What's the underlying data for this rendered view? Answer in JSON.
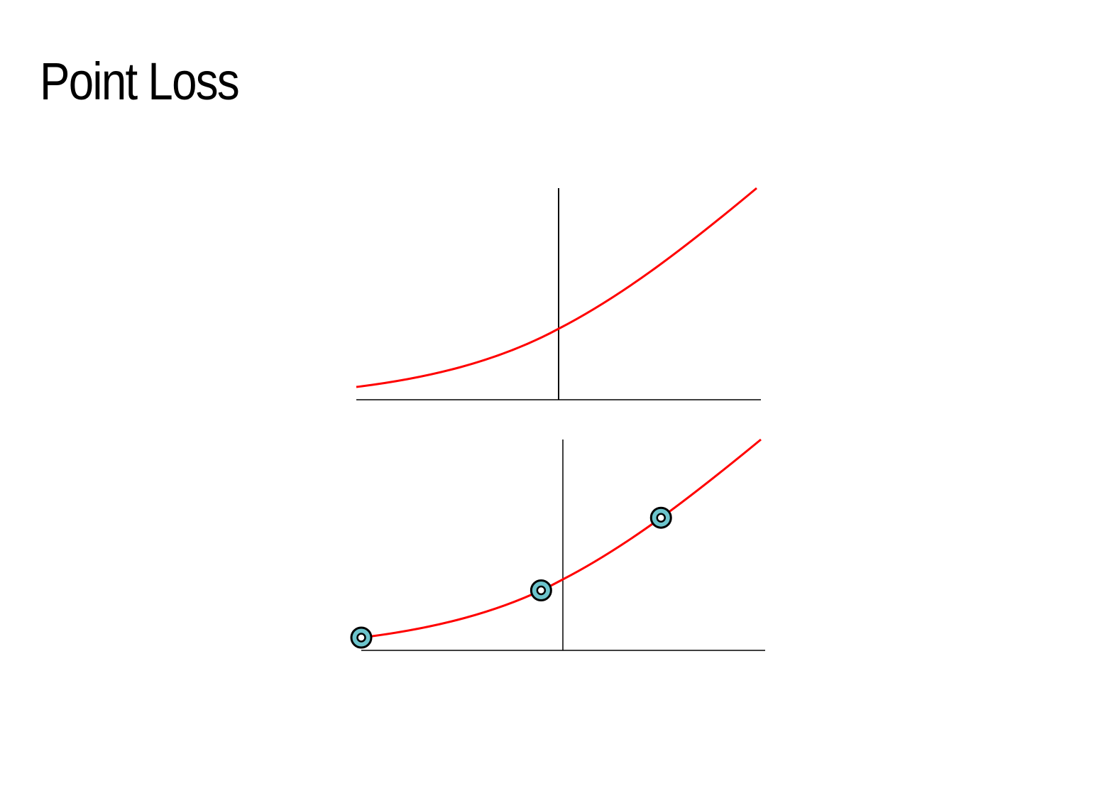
{
  "slide": {
    "title": "Point Loss"
  },
  "colors": {
    "curve": "#ff0000",
    "axis": "#000000",
    "marker_fill": "#6cc4cc",
    "marker_stroke": "#000000",
    "background": "#ffffff"
  },
  "diagrams": [
    {
      "id": "top-plot",
      "description_kind": "curve-only",
      "points": []
    },
    {
      "id": "bottom-plot",
      "description_kind": "curve-with-sample-points",
      "points": [
        {
          "label": "",
          "t": 0.0
        },
        {
          "label": "",
          "t": 0.45
        },
        {
          "label": "",
          "t": 0.75
        }
      ]
    }
  ]
}
